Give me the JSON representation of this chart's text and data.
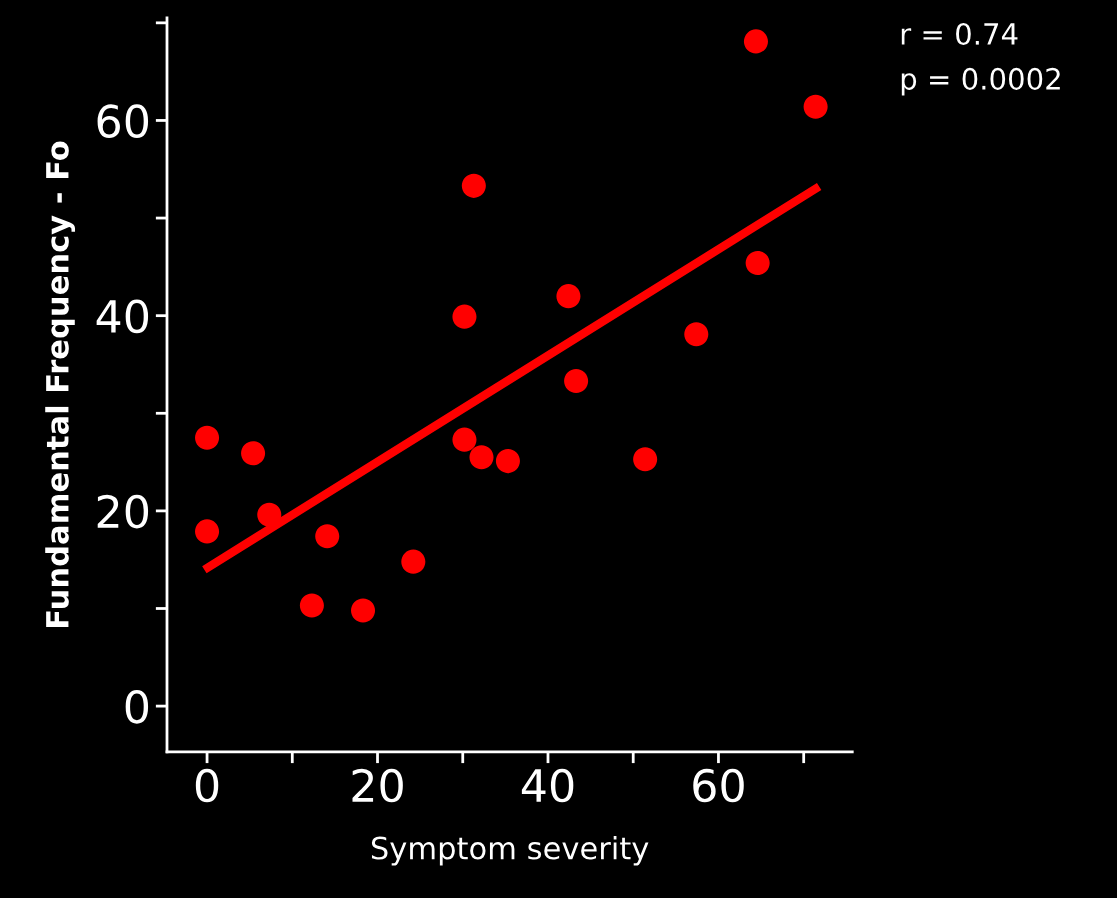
{
  "chart_data": {
    "type": "scatter",
    "xlabel": "Symptom severity",
    "ylabel": "Fundamental Frequency - Fo",
    "xlim": [
      -4.7,
      75.7
    ],
    "ylim": [
      -4.7,
      70.5
    ],
    "xticks": [
      0,
      {
        "value": 10,
        "label": null
      },
      20,
      {
        "value": 30,
        "label": null
      },
      40,
      {
        "value": 50,
        "label": null
      },
      60,
      {
        "value": 70,
        "label": null
      }
    ],
    "yticks": [
      0,
      {
        "value": 10,
        "label": null
      },
      20,
      {
        "value": 30,
        "label": null
      },
      40,
      {
        "value": 50,
        "label": null
      },
      60,
      {
        "value": 70,
        "label": null
      }
    ],
    "grid": false,
    "legend": false,
    "series": [
      {
        "marker": "circle",
        "color": "#ff0000",
        "x": [
          0,
          0,
          5.4,
          7.3,
          12.3,
          14.1,
          18.3,
          24.2,
          30.2,
          31.3,
          30.2,
          32.2,
          35.3,
          42.4,
          43.3,
          51.4,
          57.4,
          64.4,
          64.6,
          71.4
        ],
        "values": [
          27.5,
          17.9,
          25.9,
          19.6,
          10.3,
          17.4,
          9.8,
          14.8,
          39.9,
          53.3,
          27.3,
          25.5,
          25.1,
          42.0,
          33.3,
          25.3,
          38.1,
          68.1,
          45.4,
          61.4
        ]
      },
      {
        "type": "line",
        "color": "#ff0000",
        "line_style": "solid",
        "x": [
          0.1,
          71.4
        ],
        "values": [
          14.2,
          53.0
        ]
      }
    ],
    "annotations": [
      "r = 0.74",
      "p = 0.0002"
    ]
  }
}
